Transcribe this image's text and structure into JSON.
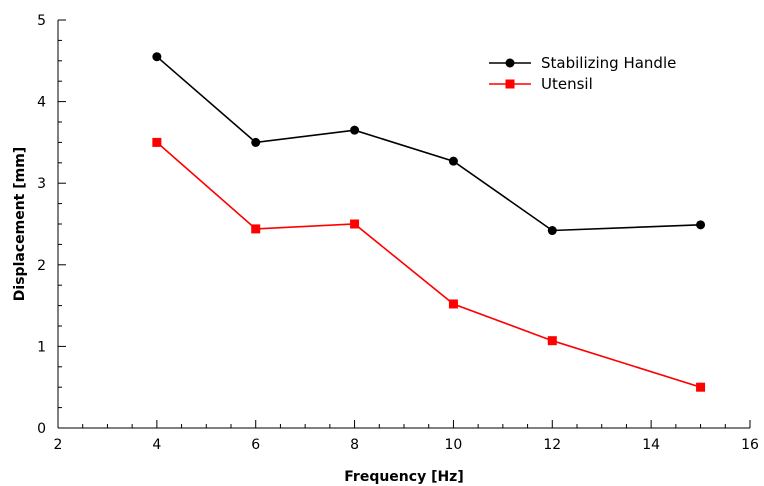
{
  "chart_data": {
    "type": "line",
    "title": "",
    "xlabel": "Frequency [Hz]",
    "ylabel": "Displacement [mm]",
    "xlim": [
      2,
      16
    ],
    "ylim": [
      0,
      5
    ],
    "x_major_ticks": [
      2,
      4,
      6,
      8,
      10,
      12,
      14,
      16
    ],
    "x_tick_labels": [
      "2",
      "4",
      "6",
      "8",
      "10",
      "12",
      "14",
      "16"
    ],
    "x_minor_step": 0.5,
    "y_major_ticks": [
      0,
      1,
      2,
      3,
      4,
      5
    ],
    "y_tick_labels": [
      "0",
      "1",
      "2",
      "3",
      "4",
      "5"
    ],
    "y_minor_step": 0.25,
    "grid": false,
    "legend_position": "top-right",
    "series": [
      {
        "name": "Stabilizing Handle",
        "color": "#000000",
        "marker": "circle",
        "x": [
          4,
          6,
          8,
          10,
          12,
          15
        ],
        "y": [
          4.55,
          3.5,
          3.65,
          3.27,
          2.42,
          2.49
        ]
      },
      {
        "name": "Utensil",
        "color": "#ff0000",
        "marker": "square",
        "x": [
          4,
          6,
          8,
          10,
          12,
          15
        ],
        "y": [
          3.5,
          2.44,
          2.5,
          1.52,
          1.07,
          0.5
        ]
      }
    ]
  }
}
